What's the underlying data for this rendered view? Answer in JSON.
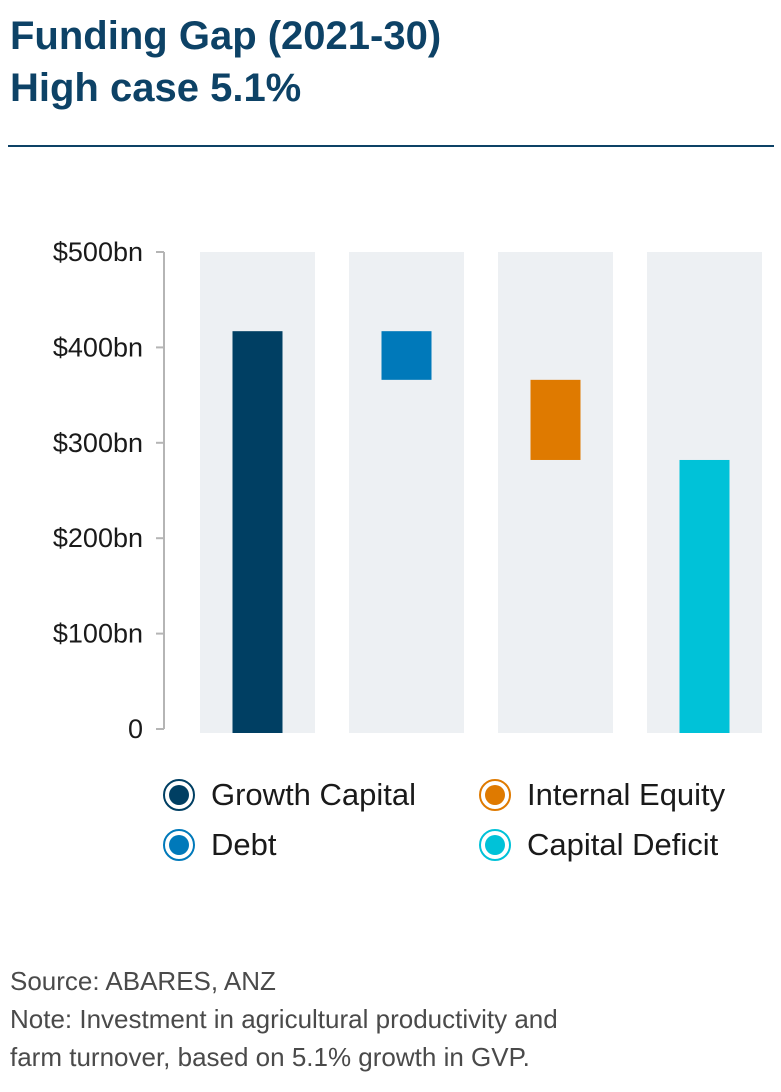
{
  "header": {
    "title_line1": "Funding Gap (2021-30)",
    "title_line2": "High case 5.1%"
  },
  "chart_data": {
    "type": "bar",
    "subtype": "waterfall",
    "title": "Funding Gap (2021-30) High case 5.1%",
    "xlabel": "",
    "ylabel": "",
    "ylim": [
      0,
      500
    ],
    "yticks": [
      0,
      100,
      200,
      300,
      400,
      500
    ],
    "ytick_labels": [
      "0",
      "$100bn",
      "$200bn",
      "$300bn",
      "$400bn",
      "$500bn"
    ],
    "grid": false,
    "legend_position": "bottom",
    "categories": [
      "Growth Capital",
      "Debt",
      "Internal Equity",
      "Capital Deficit"
    ],
    "bars": [
      {
        "name": "Growth Capital",
        "bottom": 0,
        "top": 417,
        "value": 417,
        "color": "#003f63"
      },
      {
        "name": "Debt",
        "bottom": 366,
        "top": 417,
        "value": 51,
        "color": "#0079ba"
      },
      {
        "name": "Internal Equity",
        "bottom": 282,
        "top": 366,
        "value": 84,
        "color": "#df7a00"
      },
      {
        "name": "Capital Deficit",
        "bottom": 0,
        "top": 282,
        "value": 282,
        "color": "#00c2d8"
      }
    ]
  },
  "legend": {
    "items": [
      {
        "label": "Growth Capital",
        "color": "#003f63"
      },
      {
        "label": "Internal Equity",
        "color": "#df7a00"
      },
      {
        "label": "Debt",
        "color": "#0079ba"
      },
      {
        "label": "Capital Deficit",
        "color": "#00c2d8"
      }
    ]
  },
  "footer": {
    "source": "Source: ABARES, ANZ",
    "note_line1": "Note: Investment in agricultural productivity and",
    "note_line2": "farm turnover, based on 5.1% growth in GVP."
  }
}
